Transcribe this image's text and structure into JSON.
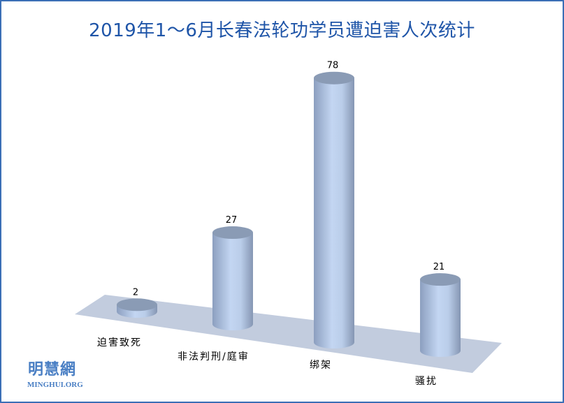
{
  "chart_data": {
    "type": "bar",
    "style": "3d-cylinder",
    "title": "2019年1～6月长春法轮功学员遭迫害人次统计",
    "categories": [
      "迫害致死",
      "非法判刑/庭审",
      "绑架",
      "骚扰"
    ],
    "values": [
      2,
      27,
      78,
      21
    ],
    "data_labels": [
      "2",
      "27",
      "78",
      "21"
    ],
    "xlabel": "",
    "ylabel": "",
    "grid": false,
    "legend": "none",
    "colors": {
      "bar": "#b4c7e7",
      "bar_top": "#8a9bb5",
      "floor": "#c2ccde",
      "title": "#1f55a8",
      "border": "#3b6fb6"
    }
  },
  "watermark": {
    "cn": "明慧網",
    "en": "MINGHUI.ORG"
  }
}
